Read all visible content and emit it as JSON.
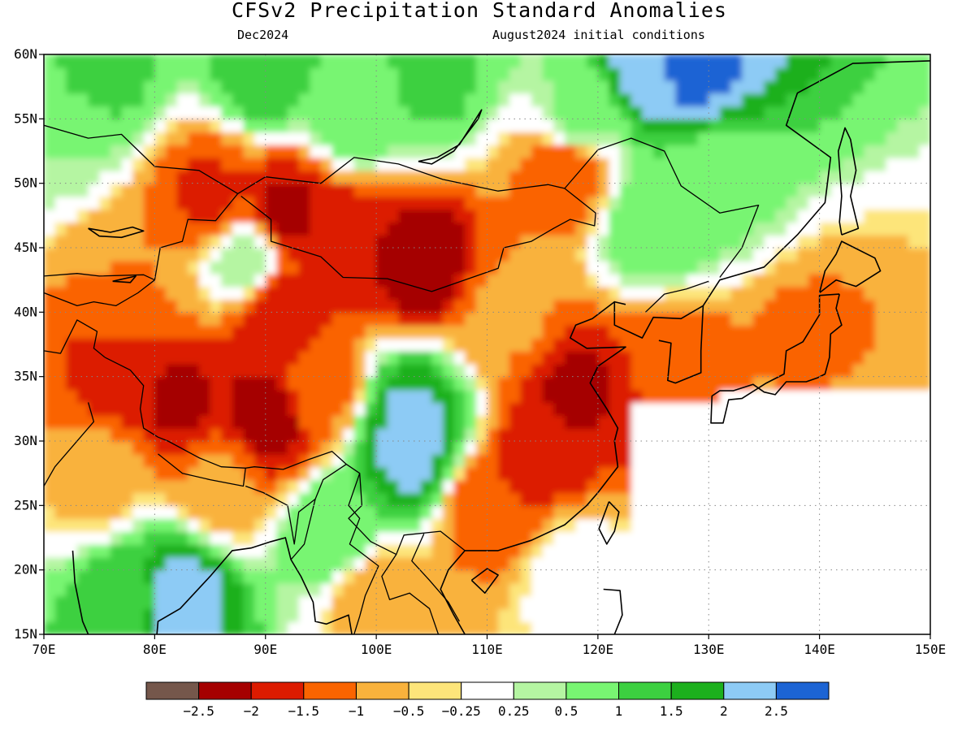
{
  "header": {
    "title": "CFSv2 Precipitation Standard Anomalies",
    "valid_month": "Dec2024",
    "initial_conditions": "August2024 initial conditions"
  },
  "map": {
    "lon_range": [
      70,
      150
    ],
    "lat_range": [
      15,
      60
    ],
    "lat_ticks": [
      {
        "value": 60,
        "label": "60N"
      },
      {
        "value": 55,
        "label": "55N"
      },
      {
        "value": 50,
        "label": "50N"
      },
      {
        "value": 45,
        "label": "45N"
      },
      {
        "value": 40,
        "label": "40N"
      },
      {
        "value": 35,
        "label": "35N"
      },
      {
        "value": 30,
        "label": "30N"
      },
      {
        "value": 25,
        "label": "25N"
      },
      {
        "value": 20,
        "label": "20N"
      },
      {
        "value": 15,
        "label": "15N"
      }
    ],
    "lon_ticks": [
      {
        "value": 70,
        "label": "70E"
      },
      {
        "value": 80,
        "label": "80E"
      },
      {
        "value": 90,
        "label": "90E"
      },
      {
        "value": 100,
        "label": "100E"
      },
      {
        "value": 110,
        "label": "110E"
      },
      {
        "value": 120,
        "label": "120E"
      },
      {
        "value": 130,
        "label": "130E"
      },
      {
        "value": 140,
        "label": "140E"
      },
      {
        "value": 150,
        "label": "150E"
      }
    ],
    "grid": "dotted"
  },
  "colorbar": {
    "colors": [
      "#75574b",
      "#a50000",
      "#dc1b00",
      "#fa6400",
      "#f9b23c",
      "#fde57a",
      "#ffffff",
      "#b5f5a2",
      "#78f572",
      "#3cd040",
      "#1cb01d",
      "#8dcbf5",
      "#1c64d4"
    ],
    "labels": [
      "−2.5",
      "−2",
      "−1.5",
      "−1",
      "−0.5",
      "−0.25",
      "0.25",
      "0.5",
      "1",
      "1.5",
      "2",
      "2.5"
    ]
  },
  "fields": [
    {
      "lon": 75,
      "lat": 58.5,
      "v": 1.2
    },
    {
      "lon": 90,
      "lat": 58.5,
      "v": 1.3
    },
    {
      "lon": 105,
      "lat": 58,
      "v": 1.1
    },
    {
      "lon": 125,
      "lat": 59,
      "v": 2.3
    },
    {
      "lon": 128,
      "lat": 59.3,
      "v": 2.8
    },
    {
      "lon": 98,
      "lat": 55,
      "v": 0.8
    },
    {
      "lon": 118,
      "lat": 55,
      "v": 0.6
    },
    {
      "lon": 72,
      "lat": 54,
      "v": 0.5
    },
    {
      "lon": 85,
      "lat": 49,
      "v": -1.6
    },
    {
      "lon": 92,
      "lat": 48,
      "v": -2.1
    },
    {
      "lon": 97,
      "lat": 46,
      "v": -1.9
    },
    {
      "lon": 104,
      "lat": 44,
      "v": -2.4
    },
    {
      "lon": 91,
      "lat": 40,
      "v": -2.0
    },
    {
      "lon": 78,
      "lat": 43,
      "v": -1.0
    },
    {
      "lon": 76,
      "lat": 35,
      "v": -1.6
    },
    {
      "lon": 82,
      "lat": 33,
      "v": -2.1
    },
    {
      "lon": 90,
      "lat": 31.5,
      "v": -2.3
    },
    {
      "lon": 95,
      "lat": 34,
      "v": -1.2
    },
    {
      "lon": 86,
      "lat": 27,
      "v": -0.9
    },
    {
      "lon": 75,
      "lat": 27,
      "v": -0.6
    },
    {
      "lon": 118,
      "lat": 34,
      "v": -2.1
    },
    {
      "lon": 115,
      "lat": 29,
      "v": -1.8
    },
    {
      "lon": 110,
      "lat": 25,
      "v": -1.5
    },
    {
      "lon": 112,
      "lat": 40,
      "v": -0.9
    },
    {
      "lon": 103,
      "lat": 32,
      "v": 2.1
    },
    {
      "lon": 103,
      "lat": 29,
      "v": 2.2
    },
    {
      "lon": 125,
      "lat": 47,
      "v": 1.0
    },
    {
      "lon": 130,
      "lat": 50,
      "v": 0.6
    },
    {
      "lon": 117,
      "lat": 51,
      "v": -1.5
    },
    {
      "lon": 82,
      "lat": 18,
      "v": 2.4
    },
    {
      "lon": 78,
      "lat": 18,
      "v": 1.3
    },
    {
      "lon": 96,
      "lat": 23,
      "v": 1.0
    },
    {
      "lon": 100,
      "lat": 18,
      "v": -0.8
    },
    {
      "lon": 127,
      "lat": 36,
      "v": -1.4
    },
    {
      "lon": 139,
      "lat": 37,
      "v": -1.2
    },
    {
      "lon": 88,
      "lat": 44,
      "v": 0.5
    },
    {
      "lon": 118,
      "lat": 20,
      "v": 0.0
    },
    {
      "lon": 140,
      "lat": 30,
      "v": 0.0
    }
  ]
}
